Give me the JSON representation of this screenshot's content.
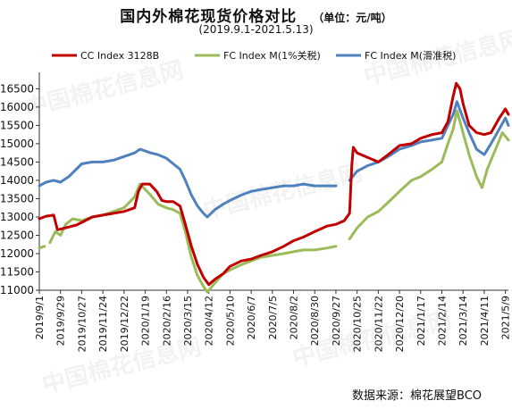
{
  "header": {
    "title": "国内外棉花现货价格对比",
    "unit": "（单位：元/吨）",
    "date_range": "(2019.9.1-2021.5.13)"
  },
  "watermark": "中国棉花信息网",
  "footer": {
    "source": "数据来源：棉花展望BCO"
  },
  "chart_data": {
    "type": "line",
    "title": "国内外棉花现货价格对比",
    "subtitle": "(2019.9.1-2021.5.13)",
    "unit": "（单位：元/吨）",
    "ylim": [
      11000,
      16900
    ],
    "yticks": [
      11000,
      11500,
      12000,
      12500,
      13000,
      13500,
      14000,
      14500,
      15000,
      15500,
      16000,
      16500
    ],
    "xlim": [
      "2019-09-01",
      "2021-05-13"
    ],
    "x_tick_labels": [
      "2019/9/1",
      "2019/9/29",
      "2019/10/27",
      "2019/11/24",
      "2019/12/22",
      "2020/1/19",
      "2020/2/16",
      "2020/3/15",
      "2020/4/12",
      "2020/5/10",
      "2020/6/7",
      "2020/7/5",
      "2020/8/2",
      "2020/8/30",
      "2020/9/27",
      "2020/10/25",
      "2020/11/22",
      "2020/12/20",
      "2021/1/17",
      "2021/2/14",
      "2021/3/14",
      "2021/4/11",
      "2021/5/9"
    ],
    "legend_position": "top",
    "grid": false,
    "series": [
      {
        "name": "CC Index 3128B",
        "color": "#c00000",
        "points": [
          [
            "2019-09-01",
            12950
          ],
          [
            "2019-09-10",
            13020
          ],
          [
            "2019-09-20",
            13050
          ],
          [
            "2019-09-25",
            12650
          ],
          [
            "2019-10-05",
            12700
          ],
          [
            "2019-10-20",
            12780
          ],
          [
            "2019-10-27",
            12850
          ],
          [
            "2019-11-10",
            13000
          ],
          [
            "2019-11-24",
            13050
          ],
          [
            "2019-12-08",
            13100
          ],
          [
            "2019-12-22",
            13150
          ],
          [
            "2020-01-05",
            13250
          ],
          [
            "2020-01-10",
            13700
          ],
          [
            "2020-01-15",
            13900
          ],
          [
            "2020-01-25",
            13900
          ],
          [
            "2020-02-03",
            13700
          ],
          [
            "2020-02-10",
            13450
          ],
          [
            "2020-02-16",
            13420
          ],
          [
            "2020-02-25",
            13420
          ],
          [
            "2020-03-05",
            13300
          ],
          [
            "2020-03-12",
            12800
          ],
          [
            "2020-03-20",
            12200
          ],
          [
            "2020-03-28",
            11700
          ],
          [
            "2020-04-05",
            11350
          ],
          [
            "2020-04-12",
            11150
          ],
          [
            "2020-04-20",
            11300
          ],
          [
            "2020-05-01",
            11450
          ],
          [
            "2020-05-10",
            11650
          ],
          [
            "2020-05-25",
            11800
          ],
          [
            "2020-06-07",
            11850
          ],
          [
            "2020-06-20",
            11950
          ],
          [
            "2020-07-05",
            12050
          ],
          [
            "2020-07-20",
            12200
          ],
          [
            "2020-08-02",
            12350
          ],
          [
            "2020-08-15",
            12450
          ],
          [
            "2020-08-30",
            12600
          ],
          [
            "2020-09-15",
            12750
          ],
          [
            "2020-09-27",
            12800
          ],
          [
            "2020-10-08",
            12900
          ],
          [
            "2020-10-15",
            13100
          ],
          [
            "2020-10-18",
            14400
          ],
          [
            "2020-10-20",
            14900
          ],
          [
            "2020-10-25",
            14750
          ],
          [
            "2020-11-05",
            14650
          ],
          [
            "2020-11-22",
            14500
          ],
          [
            "2020-12-05",
            14700
          ],
          [
            "2020-12-20",
            14950
          ],
          [
            "2021-01-05",
            15000
          ],
          [
            "2021-01-17",
            15150
          ],
          [
            "2021-02-01",
            15250
          ],
          [
            "2021-02-14",
            15300
          ],
          [
            "2021-02-22",
            15600
          ],
          [
            "2021-03-01",
            16300
          ],
          [
            "2021-03-05",
            16650
          ],
          [
            "2021-03-10",
            16500
          ],
          [
            "2021-03-14",
            16100
          ],
          [
            "2021-03-22",
            15500
          ],
          [
            "2021-04-01",
            15300
          ],
          [
            "2021-04-11",
            15250
          ],
          [
            "2021-04-20",
            15300
          ],
          [
            "2021-05-01",
            15700
          ],
          [
            "2021-05-09",
            15950
          ],
          [
            "2021-05-13",
            15800
          ]
        ]
      },
      {
        "name": "FC Index M(1%关税)",
        "color": "#9bbb59",
        "points": [
          [
            "2019-09-01",
            12150
          ],
          [
            "2019-09-08",
            12200
          ],
          [
            "2019-09-10",
            null
          ],
          [
            "2019-09-15",
            12300
          ],
          [
            "2019-09-22",
            12600
          ],
          [
            "2019-09-29",
            12500
          ],
          [
            "2019-10-06",
            12800
          ],
          [
            "2019-10-15",
            12950
          ],
          [
            "2019-10-27",
            12900
          ],
          [
            "2019-11-10",
            13000
          ],
          [
            "2019-11-24",
            13050
          ],
          [
            "2019-12-08",
            13150
          ],
          [
            "2019-12-22",
            13250
          ],
          [
            "2020-01-05",
            13550
          ],
          [
            "2020-01-12",
            13900
          ],
          [
            "2020-01-19",
            13750
          ],
          [
            "2020-01-26",
            13600
          ],
          [
            "2020-02-05",
            13350
          ],
          [
            "2020-02-16",
            13250
          ],
          [
            "2020-02-25",
            13200
          ],
          [
            "2020-03-05",
            13100
          ],
          [
            "2020-03-12",
            12600
          ],
          [
            "2020-03-20",
            11900
          ],
          [
            "2020-03-28",
            11400
          ],
          [
            "2020-04-05",
            11100
          ],
          [
            "2020-04-10",
            10950
          ],
          [
            "2020-04-20",
            11200
          ],
          [
            "2020-05-01",
            11450
          ],
          [
            "2020-05-10",
            11550
          ],
          [
            "2020-05-25",
            11700
          ],
          [
            "2020-06-07",
            11800
          ],
          [
            "2020-06-20",
            11900
          ],
          [
            "2020-07-05",
            11950
          ],
          [
            "2020-07-20",
            12000
          ],
          [
            "2020-08-02",
            12050
          ],
          [
            "2020-08-15",
            12100
          ],
          [
            "2020-08-30",
            12100
          ],
          [
            "2020-09-15",
            12150
          ],
          [
            "2020-09-27",
            12200
          ],
          [
            "2020-10-05",
            null
          ],
          [
            "2020-10-15",
            12400
          ],
          [
            "2020-10-25",
            12700
          ],
          [
            "2020-11-08",
            13000
          ],
          [
            "2020-11-22",
            13150
          ],
          [
            "2020-12-05",
            13400
          ],
          [
            "2020-12-20",
            13700
          ],
          [
            "2021-01-05",
            14000
          ],
          [
            "2021-01-17",
            14100
          ],
          [
            "2021-02-01",
            14300
          ],
          [
            "2021-02-14",
            14500
          ],
          [
            "2021-02-22",
            15000
          ],
          [
            "2021-03-01",
            15400
          ],
          [
            "2021-03-06",
            15900
          ],
          [
            "2021-03-14",
            15300
          ],
          [
            "2021-03-22",
            14700
          ],
          [
            "2021-04-01",
            14100
          ],
          [
            "2021-04-08",
            13800
          ],
          [
            "2021-04-15",
            14300
          ],
          [
            "2021-04-25",
            14800
          ],
          [
            "2021-05-05",
            15300
          ],
          [
            "2021-05-13",
            15100
          ]
        ]
      },
      {
        "name": "FC Index M(滑准税)",
        "color": "#4f81bd",
        "points": [
          [
            "2019-09-01",
            13850
          ],
          [
            "2019-09-10",
            13950
          ],
          [
            "2019-09-20",
            14000
          ],
          [
            "2019-09-29",
            13950
          ],
          [
            "2019-10-10",
            14100
          ],
          [
            "2019-10-27",
            14450
          ],
          [
            "2019-11-10",
            14500
          ],
          [
            "2019-11-24",
            14500
          ],
          [
            "2019-12-08",
            14550
          ],
          [
            "2019-12-22",
            14650
          ],
          [
            "2020-01-05",
            14750
          ],
          [
            "2020-01-12",
            14850
          ],
          [
            "2020-01-19",
            14800
          ],
          [
            "2020-01-26",
            14750
          ],
          [
            "2020-02-05",
            14700
          ],
          [
            "2020-02-16",
            14600
          ],
          [
            "2020-02-25",
            14450
          ],
          [
            "2020-03-05",
            14300
          ],
          [
            "2020-03-12",
            14000
          ],
          [
            "2020-03-20",
            13600
          ],
          [
            "2020-03-28",
            13300
          ],
          [
            "2020-04-05",
            13100
          ],
          [
            "2020-04-10",
            13000
          ],
          [
            "2020-04-20",
            13200
          ],
          [
            "2020-05-01",
            13350
          ],
          [
            "2020-05-10",
            13450
          ],
          [
            "2020-05-25",
            13600
          ],
          [
            "2020-06-07",
            13700
          ],
          [
            "2020-06-20",
            13750
          ],
          [
            "2020-07-05",
            13800
          ],
          [
            "2020-07-20",
            13850
          ],
          [
            "2020-08-02",
            13850
          ],
          [
            "2020-08-15",
            13900
          ],
          [
            "2020-08-30",
            13850
          ],
          [
            "2020-09-15",
            13850
          ],
          [
            "2020-09-27",
            13850
          ],
          [
            "2020-10-05",
            null
          ],
          [
            "2020-10-15",
            14000
          ],
          [
            "2020-10-25",
            14250
          ],
          [
            "2020-11-08",
            14400
          ],
          [
            "2020-11-22",
            14500
          ],
          [
            "2020-12-05",
            14650
          ],
          [
            "2020-12-20",
            14850
          ],
          [
            "2021-01-05",
            14950
          ],
          [
            "2021-01-17",
            15050
          ],
          [
            "2021-02-01",
            15100
          ],
          [
            "2021-02-14",
            15150
          ],
          [
            "2021-02-22",
            15500
          ],
          [
            "2021-03-01",
            15800
          ],
          [
            "2021-03-06",
            16150
          ],
          [
            "2021-03-14",
            15700
          ],
          [
            "2021-03-22",
            15300
          ],
          [
            "2021-04-01",
            14850
          ],
          [
            "2021-04-11",
            14700
          ],
          [
            "2021-04-20",
            15000
          ],
          [
            "2021-05-01",
            15400
          ],
          [
            "2021-05-09",
            15700
          ],
          [
            "2021-05-13",
            15500
          ]
        ]
      }
    ]
  }
}
